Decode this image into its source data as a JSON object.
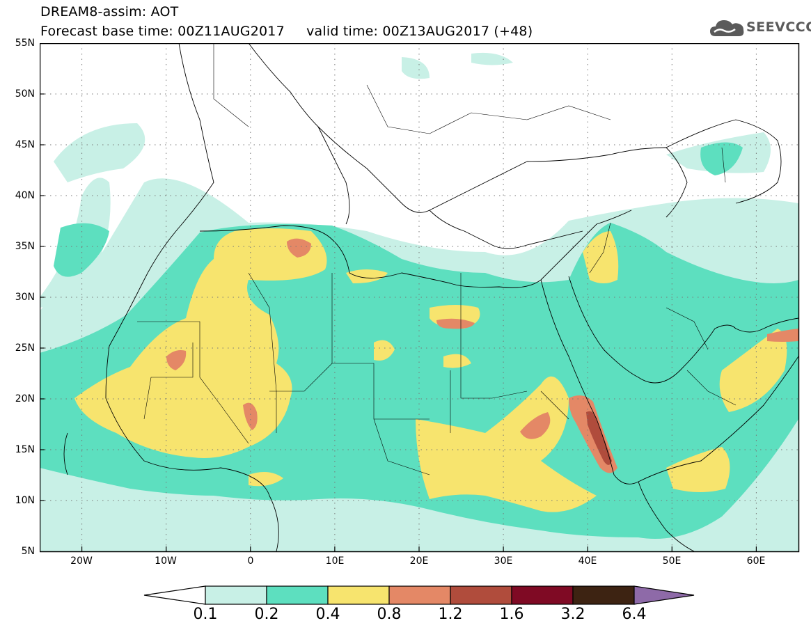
{
  "header": {
    "title_line1": "DREAM8-assim: AOT",
    "title_line2": "Forecast base time: 00Z11AUG2017     valid time: 00Z13AUG2017 (+48)"
  },
  "logo": {
    "text": "SEEVCCC",
    "icon": "cloud-icon"
  },
  "map": {
    "lat_labels": [
      "55N",
      "50N",
      "45N",
      "40N",
      "35N",
      "30N",
      "25N",
      "20N",
      "15N",
      "10N",
      "5N"
    ],
    "lon_labels": [
      "20W",
      "10W",
      "0",
      "10E",
      "20E",
      "30E",
      "40E",
      "50E",
      "60E"
    ],
    "lat_values": [
      55,
      50,
      45,
      40,
      35,
      30,
      25,
      20,
      15,
      10,
      5
    ],
    "lon_values": [
      -20,
      -10,
      0,
      10,
      20,
      30,
      40,
      50,
      60
    ],
    "extent": {
      "lon_min": -25,
      "lon_max": 65,
      "lat_min": 5,
      "lat_max": 55
    },
    "variable": "AOT",
    "grid": true
  },
  "colorbar": {
    "labels": [
      "0.1",
      "0.2",
      "0.4",
      "0.8",
      "1.2",
      "1.6",
      "3.2",
      "6.4"
    ],
    "colors": [
      "#ffffff",
      "#c8f0e6",
      "#5ddfbf",
      "#f7e46e",
      "#e48866",
      "#b04c3c",
      "#7f0a24",
      "#3d2312",
      "#8e6aa8"
    ]
  }
}
